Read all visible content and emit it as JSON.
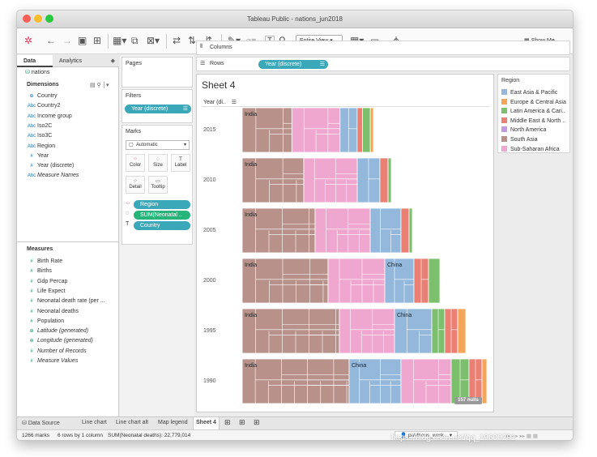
{
  "window": {
    "title": "Tableau Public - nations_jun2018"
  },
  "toolbar": {
    "view_mode": "Entire View",
    "show_me": "Show Me"
  },
  "left_pane": {
    "tabs": [
      "Data",
      "Analytics"
    ],
    "source": "nations",
    "dimensions_header": "Dimensions",
    "dimensions": [
      {
        "icon": "⊕",
        "label": "Country",
        "italic": false
      },
      {
        "icon": "Abc",
        "label": "Country2",
        "italic": false
      },
      {
        "icon": "Abc",
        "label": "Income group",
        "italic": false
      },
      {
        "icon": "Abc",
        "label": "Iso2C",
        "italic": false
      },
      {
        "icon": "Abc",
        "label": "Iso3C",
        "italic": false
      },
      {
        "icon": "Abc",
        "label": "Region",
        "italic": false
      },
      {
        "icon": "#",
        "label": "Year",
        "italic": false
      },
      {
        "icon": "#",
        "label": "Year (discrete)",
        "italic": false
      },
      {
        "icon": "Abc",
        "label": "Measure Names",
        "italic": true
      }
    ],
    "measures_header": "Measures",
    "measures": [
      {
        "icon": "#",
        "label": "Birth Rate",
        "italic": false
      },
      {
        "icon": "#",
        "label": "Births",
        "italic": false
      },
      {
        "icon": "#",
        "label": "Gdp Percap",
        "italic": false
      },
      {
        "icon": "#",
        "label": "Life Expect",
        "italic": false
      },
      {
        "icon": "#",
        "label": "Neonatal death rate (per ...",
        "italic": false
      },
      {
        "icon": "#",
        "label": "Neonatal deaths",
        "italic": false
      },
      {
        "icon": "#",
        "label": "Population",
        "italic": false
      },
      {
        "icon": "⊕",
        "label": "Latitude (generated)",
        "italic": true
      },
      {
        "icon": "⊕",
        "label": "Longitude (generated)",
        "italic": true
      },
      {
        "icon": "#",
        "label": "Number of Records",
        "italic": true
      },
      {
        "icon": "#",
        "label": "Measure Values",
        "italic": true
      }
    ]
  },
  "cards": {
    "pages": "Pages",
    "filters": "Filters",
    "filter_pill": "Year (discrete)",
    "marks": "Marks",
    "mark_type": "Automatic",
    "buttons": [
      "Color",
      "Size",
      "Label",
      "Detail",
      "Tooltip"
    ],
    "pills": [
      "Region",
      "SUM(Neonatal ..",
      "Country"
    ]
  },
  "shelves": {
    "columns": "Columns",
    "rows": "Rows",
    "rows_pill": "Year (discrete)"
  },
  "view": {
    "sheet_title": "Sheet 4",
    "year_header": "Year (di..",
    "nulls_badge": "157 nulls"
  },
  "legend": {
    "title": "Region",
    "items": [
      {
        "label": "East Asia & Pacific",
        "color": "#93b8db"
      },
      {
        "label": "Europe & Central Asia",
        "color": "#f3a55a"
      },
      {
        "label": "Latin America & Cari..",
        "color": "#7cc06d"
      },
      {
        "label": "Middle East & North ..",
        "color": "#ea7f73"
      },
      {
        "label": "North America",
        "color": "#c39adf"
      },
      {
        "label": "South Asia",
        "color": "#b8928a"
      },
      {
        "label": "Sub-Saharan Africa",
        "color": "#efa7cf"
      }
    ]
  },
  "chart_data": {
    "type": "treemap",
    "rows": [
      {
        "year": "2015",
        "annotation": "India"
      },
      {
        "year": "2010",
        "annotation": "India"
      },
      {
        "year": "2005",
        "annotation": "India"
      },
      {
        "year": "2000",
        "annotation": "India",
        "annotation2": "China"
      },
      {
        "year": "1995",
        "annotation": "India",
        "annotation2": "China"
      },
      {
        "year": "1990",
        "annotation": "India",
        "annotation2": "China"
      }
    ]
  },
  "tabs": [
    "Data Source",
    "Line chart",
    "Line chart alt",
    "Map legend",
    "Sheet 4"
  ],
  "status": {
    "marks": "1266 marks",
    "rows": "6 rows by 1 column",
    "sum": "SUM(Neonatal deaths): 22,779,014",
    "user": "paldhous_work..."
  },
  "watermark": "https://blog.csdn.net/qq_19600291"
}
